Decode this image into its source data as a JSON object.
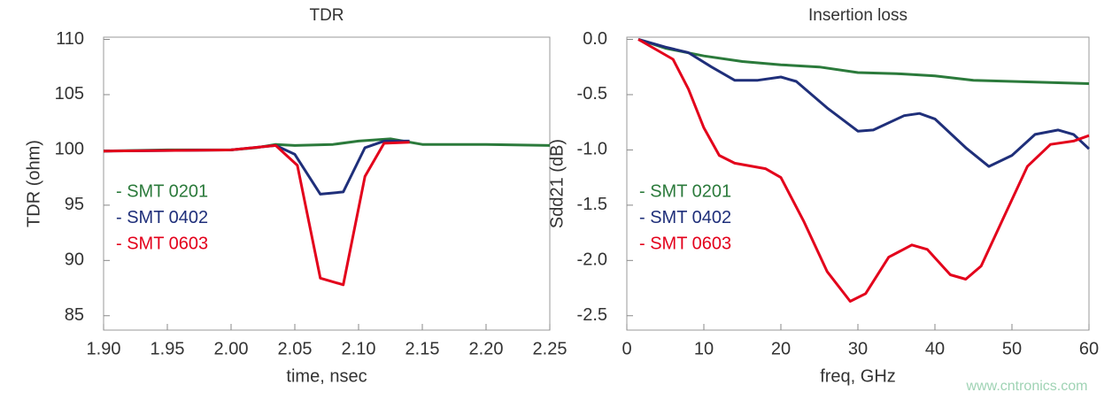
{
  "chart_data": [
    {
      "type": "line",
      "title": "TDR",
      "x_label": "time, nsec",
      "y_label": "TDR (ohm)",
      "xlim": [
        1.9,
        2.25
      ],
      "xticks": [
        {
          "value": 1.9,
          "label": "1.90"
        },
        {
          "value": 1.95,
          "label": "1.95"
        },
        {
          "value": 2.0,
          "label": "2.00"
        },
        {
          "value": 2.05,
          "label": "2.05"
        },
        {
          "value": 2.1,
          "label": "2.10"
        },
        {
          "value": 2.15,
          "label": "2.15"
        },
        {
          "value": 2.2,
          "label": "2.20"
        },
        {
          "value": 2.25,
          "label": "2.25"
        }
      ],
      "ylim": [
        83.7,
        110.2
      ],
      "yticks": [
        85,
        90,
        95,
        100,
        105,
        110
      ],
      "grid": false,
      "legend": "center-left",
      "series": [
        {
          "name": "- SMT 0201",
          "color": "#2b7a3b",
          "x": [
            1.9,
            1.95,
            2.0,
            2.02,
            2.035,
            2.05,
            2.08,
            2.1,
            2.125,
            2.15,
            2.2,
            2.25
          ],
          "values": [
            99.9,
            100,
            100,
            100.2,
            100.5,
            100.4,
            100.5,
            100.8,
            101,
            100.5,
            100.5,
            100.4
          ]
        },
        {
          "name": "- SMT 0402",
          "color": "#1f2f7a",
          "x": [
            1.9,
            2.0,
            2.035,
            2.05,
            2.07,
            2.088,
            2.105,
            2.12,
            2.14
          ],
          "values": [
            99.9,
            100,
            100.4,
            99.6,
            96,
            96.2,
            100.2,
            100.8,
            100.8
          ]
        },
        {
          "name": "- SMT 0603",
          "color": "#e3001b",
          "x": [
            1.9,
            2.0,
            2.035,
            2.052,
            2.07,
            2.088,
            2.105,
            2.12,
            2.14
          ],
          "values": [
            99.9,
            100,
            100.4,
            98.6,
            88.4,
            87.8,
            97.6,
            100.6,
            100.7
          ]
        }
      ]
    },
    {
      "type": "line",
      "title": "Insertion loss",
      "x_label": "freq, GHz",
      "y_label": "Sdd21 (dB)",
      "xlim": [
        0,
        60
      ],
      "xticks": [
        0,
        10,
        20,
        30,
        40,
        50,
        60
      ],
      "ylim": [
        -2.63,
        0.02
      ],
      "yticks": [
        {
          "value": 0,
          "label": "0.0"
        },
        {
          "value": -0.5,
          "label": "-0.5"
        },
        {
          "value": -1,
          "label": "-1.0"
        },
        {
          "value": -1.5,
          "label": "-1.5"
        },
        {
          "value": -2,
          "label": "-2.0"
        },
        {
          "value": -2.5,
          "label": "-2.5"
        }
      ],
      "grid": false,
      "legend": "center-left",
      "series": [
        {
          "name": "- SMT 0201",
          "color": "#2b7a3b",
          "x": [
            1.5,
            5,
            10,
            15,
            20,
            25,
            30,
            35,
            40,
            45,
            50,
            55,
            60
          ],
          "values": [
            0,
            -0.08,
            -0.15,
            -0.2,
            -0.23,
            -0.25,
            -0.3,
            -0.31,
            -0.33,
            -0.37,
            -0.38,
            -0.39,
            -0.4
          ]
        },
        {
          "name": "- SMT 0402",
          "color": "#1f2f7a",
          "x": [
            1.5,
            5,
            8,
            11,
            14,
            17,
            20,
            22,
            26,
            30,
            32,
            36,
            38,
            40,
            44,
            47,
            50,
            53,
            56,
            58,
            60
          ],
          "values": [
            0,
            -0.07,
            -0.12,
            -0.25,
            -0.37,
            -0.37,
            -0.34,
            -0.38,
            -0.62,
            -0.83,
            -0.82,
            -0.69,
            -0.67,
            -0.72,
            -0.98,
            -1.15,
            -1.05,
            -0.86,
            -0.82,
            -0.86,
            -0.99
          ]
        },
        {
          "name": "- SMT 0603",
          "color": "#e3001b",
          "x": [
            1.5,
            4,
            6,
            8,
            10,
            12,
            14,
            18,
            20,
            23,
            26,
            29,
            31,
            34,
            37,
            39,
            42,
            44,
            46,
            49,
            52,
            55,
            58,
            60
          ],
          "values": [
            0,
            -0.1,
            -0.18,
            -0.45,
            -0.8,
            -1.05,
            -1.12,
            -1.17,
            -1.25,
            -1.65,
            -2.1,
            -2.37,
            -2.3,
            -1.97,
            -1.86,
            -1.9,
            -2.13,
            -2.17,
            -2.05,
            -1.6,
            -1.15,
            -0.95,
            -0.92,
            -0.87
          ]
        }
      ]
    }
  ],
  "watermark": "www.cntronics.com"
}
